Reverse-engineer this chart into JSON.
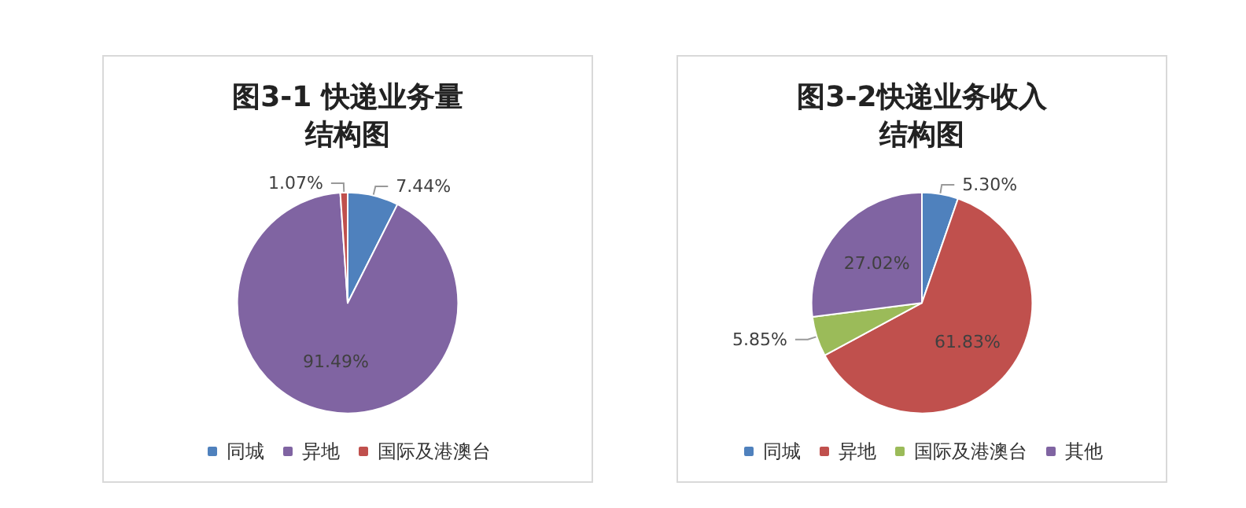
{
  "chart_data": [
    {
      "type": "pie",
      "title": "图3-1 快递业务量",
      "subtitle": "结构图",
      "categories": [
        "同城",
        "异地",
        "国际及港澳台"
      ],
      "values": [
        7.44,
        91.49,
        1.07
      ],
      "colors": [
        "#4f81bd",
        "#8064a2",
        "#c0504d"
      ],
      "value_labels": [
        "7.44%",
        "91.49%",
        "1.07%"
      ],
      "legend": "bottom"
    },
    {
      "type": "pie",
      "title": "图3-2快递业务收入",
      "subtitle": "结构图",
      "categories": [
        "同城",
        "异地",
        "国际及港澳台",
        "其他"
      ],
      "values": [
        5.3,
        61.83,
        5.85,
        27.02
      ],
      "colors": [
        "#4f81bd",
        "#c0504d",
        "#9bbb59",
        "#8064a2"
      ],
      "value_labels": [
        "5.30%",
        "61.83%",
        "5.85%",
        "27.02%"
      ],
      "legend": "bottom"
    }
  ]
}
